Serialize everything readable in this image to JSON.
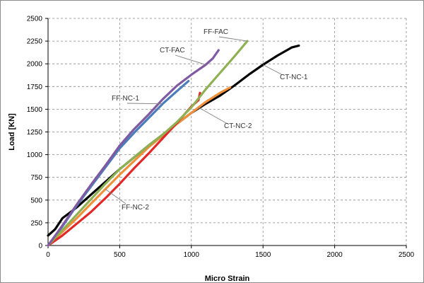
{
  "chart_data": {
    "type": "line",
    "xlabel": "Micro Strain",
    "ylabel": "Load [KN]",
    "xlim": [
      0,
      2500
    ],
    "ylim": [
      0,
      2500
    ],
    "xticks": [
      0,
      500,
      1000,
      1500,
      2000,
      2500
    ],
    "yticks": [
      0,
      250,
      500,
      750,
      1000,
      1250,
      1500,
      1750,
      2000,
      2250,
      2500
    ],
    "grid": "dashed",
    "legend": "none (inline annotations)",
    "series": [
      {
        "name": "CT-NC-1",
        "color": "#000000",
        "points": [
          [
            0,
            110
          ],
          [
            50,
            180
          ],
          [
            100,
            300
          ],
          [
            200,
            420
          ],
          [
            300,
            560
          ],
          [
            400,
            700
          ],
          [
            500,
            840
          ],
          [
            600,
            970
          ],
          [
            700,
            1100
          ],
          [
            800,
            1220
          ],
          [
            900,
            1340
          ],
          [
            1000,
            1460
          ],
          [
            1100,
            1560
          ],
          [
            1200,
            1650
          ],
          [
            1300,
            1760
          ],
          [
            1400,
            1880
          ],
          [
            1500,
            1990
          ],
          [
            1600,
            2090
          ],
          [
            1700,
            2180
          ],
          [
            1750,
            2200
          ]
        ]
      },
      {
        "name": "CT-NC-2",
        "color": "#f0903a",
        "points": [
          [
            0,
            0
          ],
          [
            100,
            150
          ],
          [
            200,
            300
          ],
          [
            300,
            460
          ],
          [
            400,
            620
          ],
          [
            500,
            780
          ],
          [
            600,
            930
          ],
          [
            700,
            1080
          ],
          [
            800,
            1210
          ],
          [
            900,
            1340
          ],
          [
            1000,
            1460
          ],
          [
            1050,
            1520
          ],
          [
            1100,
            1580
          ],
          [
            1200,
            1680
          ],
          [
            1270,
            1740
          ]
        ]
      },
      {
        "name": "FF-NC-1",
        "color": "#4a7ebb",
        "points": [
          [
            0,
            0
          ],
          [
            100,
            210
          ],
          [
            200,
            440
          ],
          [
            300,
            650
          ],
          [
            400,
            860
          ],
          [
            500,
            1070
          ],
          [
            600,
            1240
          ],
          [
            700,
            1400
          ],
          [
            800,
            1560
          ],
          [
            900,
            1700
          ],
          [
            980,
            1810
          ]
        ]
      },
      {
        "name": "FF-NC-2",
        "color": "#e32828",
        "points": [
          [
            0,
            0
          ],
          [
            100,
            110
          ],
          [
            200,
            240
          ],
          [
            300,
            370
          ],
          [
            400,
            520
          ],
          [
            500,
            680
          ],
          [
            600,
            850
          ],
          [
            700,
            1010
          ],
          [
            800,
            1180
          ],
          [
            900,
            1350
          ],
          [
            1000,
            1530
          ],
          [
            1050,
            1600
          ],
          [
            1060,
            1680
          ]
        ]
      },
      {
        "name": "FF-FAC",
        "color": "#8db153",
        "points": [
          [
            0,
            0
          ],
          [
            100,
            170
          ],
          [
            200,
            340
          ],
          [
            300,
            510
          ],
          [
            400,
            680
          ],
          [
            500,
            840
          ],
          [
            600,
            970
          ],
          [
            700,
            1100
          ],
          [
            800,
            1220
          ],
          [
            900,
            1360
          ],
          [
            1000,
            1520
          ],
          [
            1100,
            1720
          ],
          [
            1200,
            1900
          ],
          [
            1300,
            2080
          ],
          [
            1390,
            2250
          ]
        ]
      },
      {
        "name": "CT-FAC",
        "color": "#7f5aa2",
        "points": [
          [
            0,
            0
          ],
          [
            100,
            220
          ],
          [
            200,
            450
          ],
          [
            300,
            670
          ],
          [
            400,
            880
          ],
          [
            500,
            1100
          ],
          [
            600,
            1280
          ],
          [
            700,
            1440
          ],
          [
            800,
            1610
          ],
          [
            900,
            1760
          ],
          [
            1000,
            1880
          ],
          [
            1100,
            1990
          ],
          [
            1150,
            2060
          ],
          [
            1190,
            2150
          ]
        ]
      }
    ],
    "annotations": [
      {
        "text": "FF-FAC",
        "points_to": [
          1390,
          2250
        ]
      },
      {
        "text": "CT-FAC",
        "points_to": [
          1100,
          1990
        ]
      },
      {
        "text": "CT-NC-1",
        "points_to": [
          1500,
          1990
        ]
      },
      {
        "text": "FF-NC-1",
        "points_to": [
          800,
          1560
        ]
      },
      {
        "text": "CT-NC-2",
        "points_to": [
          1050,
          1520
        ]
      },
      {
        "text": "FF-NC-2",
        "points_to": [
          400,
          620
        ]
      }
    ]
  }
}
